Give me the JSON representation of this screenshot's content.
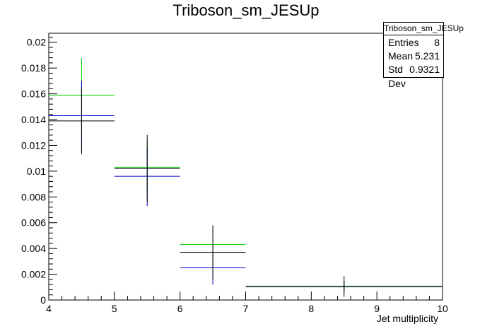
{
  "chart_data": {
    "type": "scatter",
    "title": "Triboson_sm_JESUp",
    "xlabel": "Jet multiplicity",
    "ylabel": "",
    "xlim": [
      4,
      10
    ],
    "ylim": [
      0,
      0.0207
    ],
    "x_ticks": [
      "4",
      "5",
      "6",
      "7",
      "8",
      "9",
      "10"
    ],
    "y_ticks": [
      "0",
      "0.002",
      "0.004",
      "0.006",
      "0.008",
      "0.01",
      "0.012",
      "0.014",
      "0.016",
      "0.018",
      "0.02"
    ],
    "grid": false,
    "series": [
      {
        "color": "#000000",
        "points": [
          {
            "x0": 4,
            "x1": 5,
            "y": 0.0139,
            "err": 0.0026
          },
          {
            "x0": 5,
            "x1": 6,
            "y": 0.0102,
            "err": 0.0026
          },
          {
            "x0": 6,
            "x1": 7,
            "y": 0.0037,
            "err": 0.0021
          },
          {
            "x0": 7,
            "x1": 10,
            "y": 0.00105,
            "err": 0.0008
          }
        ]
      },
      {
        "color": "#0000cc",
        "points": [
          {
            "x0": 4,
            "x1": 5,
            "y": 0.0143,
            "err": 0.0027
          },
          {
            "x0": 5,
            "x1": 6,
            "y": 0.0096,
            "err": 0.0023
          },
          {
            "x0": 6,
            "x1": 7,
            "y": 0.0025,
            "err": 0.0013
          },
          {
            "x0": 7,
            "x1": 10,
            "y": 0.00105,
            "err": 0.0004
          }
        ]
      },
      {
        "color": "#00cc00",
        "points": [
          {
            "x0": 4,
            "x1": 5,
            "y": 0.0159,
            "err": 0.0029
          },
          {
            "x0": 5,
            "x1": 6,
            "y": 0.0103,
            "err": 0.0021
          },
          {
            "x0": 6,
            "x1": 7,
            "y": 0.0043,
            "err": 0.0013
          },
          {
            "x0": 7,
            "x1": 10,
            "y": 0.00108,
            "err": 0.0004
          }
        ]
      }
    ]
  },
  "stats": {
    "name": "Triboson_sm_JESUp",
    "entries_label": "Entries",
    "entries": "8",
    "mean_label": "Mean",
    "mean": "5.231",
    "std_label": "Std Dev",
    "std": "0.9321"
  }
}
